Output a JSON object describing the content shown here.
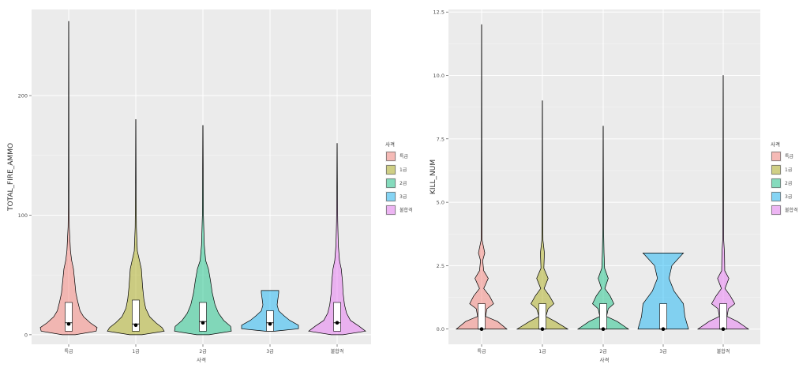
{
  "chart_data": [
    {
      "type": "violin",
      "xlabel": "사격",
      "ylabel": "TOTAL_FIRE_AMMO",
      "categories": [
        "특급",
        "1급",
        "2급",
        "3급",
        "불합격"
      ],
      "yticks": [
        0,
        100,
        200
      ],
      "ytick_labels": [
        "0",
        "100",
        "200"
      ],
      "ylim": [
        -8,
        272
      ],
      "grid": true,
      "legend": {
        "title": "사격",
        "placement": "right",
        "entries": [
          "특급",
          "1급",
          "2급",
          "3급",
          "불합격"
        ]
      },
      "series": [
        {
          "category": "특급",
          "min": 0,
          "max": 262,
          "box": {
            "q1": 3,
            "median": 10,
            "q3": 27
          },
          "mean": 9,
          "profile": [
            [
              0,
              0.22
            ],
            [
              3,
              0.92
            ],
            [
              6,
              0.95
            ],
            [
              10,
              0.72
            ],
            [
              15,
              0.5
            ],
            [
              20,
              0.38
            ],
            [
              28,
              0.3
            ],
            [
              35,
              0.24
            ],
            [
              45,
              0.2
            ],
            [
              55,
              0.16
            ],
            [
              62,
              0.1
            ],
            [
              70,
              0.06
            ],
            [
              80,
              0.04
            ],
            [
              90,
              0.02
            ],
            [
              110,
              0.01
            ],
            [
              150,
              0.008
            ],
            [
              200,
              0.006
            ],
            [
              262,
              0.003
            ]
          ]
        },
        {
          "category": "1급",
          "min": 0,
          "max": 180,
          "box": {
            "q1": 3,
            "median": 9,
            "q3": 29
          },
          "mean": 8,
          "profile": [
            [
              0,
              0.2
            ],
            [
              3,
              0.92
            ],
            [
              6,
              0.85
            ],
            [
              10,
              0.65
            ],
            [
              15,
              0.45
            ],
            [
              22,
              0.32
            ],
            [
              30,
              0.26
            ],
            [
              40,
              0.22
            ],
            [
              55,
              0.18
            ],
            [
              62,
              0.12
            ],
            [
              70,
              0.05
            ],
            [
              90,
              0.02
            ],
            [
              120,
              0.01
            ],
            [
              180,
              0.003
            ]
          ]
        },
        {
          "category": "2급",
          "min": 0,
          "max": 175,
          "box": {
            "q1": 3,
            "median": 11,
            "q3": 27
          },
          "mean": 10,
          "profile": [
            [
              0,
              0.18
            ],
            [
              3,
              0.82
            ],
            [
              7,
              0.8
            ],
            [
              12,
              0.6
            ],
            [
              18,
              0.45
            ],
            [
              25,
              0.35
            ],
            [
              35,
              0.27
            ],
            [
              45,
              0.22
            ],
            [
              55,
              0.16
            ],
            [
              62,
              0.08
            ],
            [
              75,
              0.04
            ],
            [
              100,
              0.015
            ],
            [
              140,
              0.008
            ],
            [
              175,
              0.003
            ]
          ]
        },
        {
          "category": "3급",
          "min": 3,
          "max": 37,
          "box": {
            "q1": 3,
            "median": 10,
            "q3": 20
          },
          "mean": 9,
          "profile": [
            [
              3,
              0.12
            ],
            [
              5,
              0.72
            ],
            [
              8,
              0.72
            ],
            [
              12,
              0.5
            ],
            [
              16,
              0.35
            ],
            [
              20,
              0.22
            ],
            [
              25,
              0.18
            ],
            [
              30,
              0.2
            ],
            [
              35,
              0.22
            ],
            [
              37,
              0.22
            ]
          ]
        },
        {
          "category": "불합격",
          "min": 0,
          "max": 160,
          "box": {
            "q1": 3,
            "median": 10,
            "q3": 27
          },
          "mean": 10,
          "profile": [
            [
              0,
              0.2
            ],
            [
              3,
              0.96
            ],
            [
              7,
              0.75
            ],
            [
              12,
              0.45
            ],
            [
              18,
              0.32
            ],
            [
              25,
              0.25
            ],
            [
              35,
              0.2
            ],
            [
              45,
              0.18
            ],
            [
              55,
              0.14
            ],
            [
              62,
              0.08
            ],
            [
              75,
              0.04
            ],
            [
              95,
              0.02
            ],
            [
              120,
              0.01
            ],
            [
              160,
              0.003
            ]
          ]
        }
      ]
    },
    {
      "type": "violin",
      "xlabel": "사격",
      "ylabel": "KILL_NUM",
      "categories": [
        "특급",
        "1급",
        "2급",
        "3급",
        "불합격"
      ],
      "yticks": [
        0,
        2.5,
        5,
        7.5,
        10,
        12.5
      ],
      "ytick_labels": [
        "0.0",
        "2.5",
        "5.0",
        "7.5",
        "10.0",
        "12.5"
      ],
      "ylim": [
        -0.6,
        12.6
      ],
      "grid": true,
      "legend": {
        "title": "사격",
        "placement": "right",
        "entries": [
          "특급",
          "1급",
          "2급",
          "3급",
          "불합격"
        ]
      },
      "series": [
        {
          "category": "특급",
          "min": 0,
          "max": 12,
          "box": {
            "q1": 0,
            "median": 0,
            "q3": 1
          },
          "mean": 0,
          "profile": [
            [
              0,
              0.95
            ],
            [
              0.3,
              0.6
            ],
            [
              0.5,
              0.15
            ],
            [
              0.8,
              0.2
            ],
            [
              1,
              0.45
            ],
            [
              1.3,
              0.3
            ],
            [
              1.6,
              0.08
            ],
            [
              2,
              0.25
            ],
            [
              2.3,
              0.08
            ],
            [
              2.7,
              0.04
            ],
            [
              3,
              0.12
            ],
            [
              3.5,
              0.02
            ],
            [
              5,
              0.012
            ],
            [
              7,
              0.008
            ],
            [
              9,
              0.006
            ],
            [
              12,
              0.003
            ]
          ]
        },
        {
          "category": "1급",
          "min": 0,
          "max": 9,
          "box": {
            "q1": 0,
            "median": 0,
            "q3": 1
          },
          "mean": 0,
          "profile": [
            [
              0,
              0.88
            ],
            [
              0.3,
              0.45
            ],
            [
              0.5,
              0.12
            ],
            [
              0.8,
              0.2
            ],
            [
              1,
              0.4
            ],
            [
              1.3,
              0.25
            ],
            [
              1.6,
              0.06
            ],
            [
              2,
              0.2
            ],
            [
              2.4,
              0.05
            ],
            [
              3,
              0.07
            ],
            [
              3.5,
              0.02
            ],
            [
              5,
              0.01
            ],
            [
              7,
              0.006
            ],
            [
              9,
              0.003
            ]
          ]
        },
        {
          "category": "2급",
          "min": 0,
          "max": 8,
          "box": {
            "q1": 0,
            "median": 0,
            "q3": 1
          },
          "mean": 0,
          "profile": [
            [
              0,
              0.9
            ],
            [
              0.3,
              0.5
            ],
            [
              0.5,
              0.12
            ],
            [
              0.8,
              0.18
            ],
            [
              1,
              0.38
            ],
            [
              1.3,
              0.25
            ],
            [
              1.6,
              0.06
            ],
            [
              2,
              0.18
            ],
            [
              2.4,
              0.05
            ],
            [
              3,
              0.03
            ],
            [
              4,
              0.012
            ],
            [
              6,
              0.008
            ],
            [
              8,
              0.003
            ]
          ]
        },
        {
          "category": "3급",
          "min": 0,
          "max": 3,
          "box": {
            "q1": 0,
            "median": 0,
            "q3": 1
          },
          "mean": 0,
          "profile": [
            [
              0,
              0.35
            ],
            [
              0.5,
              0.3
            ],
            [
              1,
              0.28
            ],
            [
              1.5,
              0.15
            ],
            [
              2,
              0.08
            ],
            [
              2.5,
              0.12
            ],
            [
              3,
              0.28
            ]
          ]
        },
        {
          "category": "불합격",
          "min": 0,
          "max": 10,
          "box": {
            "q1": 0,
            "median": 0,
            "q3": 1
          },
          "mean": 0,
          "profile": [
            [
              0,
              0.98
            ],
            [
              0.3,
              0.55
            ],
            [
              0.5,
              0.15
            ],
            [
              0.8,
              0.2
            ],
            [
              1,
              0.45
            ],
            [
              1.3,
              0.28
            ],
            [
              1.6,
              0.07
            ],
            [
              2,
              0.22
            ],
            [
              2.3,
              0.06
            ],
            [
              3,
              0.05
            ],
            [
              3.5,
              0.02
            ],
            [
              5,
              0.012
            ],
            [
              7,
              0.008
            ],
            [
              10,
              0.003
            ]
          ]
        }
      ]
    }
  ],
  "colors": {
    "특급": "#f8766d",
    "1급": "#a3a500",
    "2급": "#00bf7d",
    "3급": "#00b0f6",
    "불합격": "#e76bf3",
    "panel_background": "#ebebeb",
    "grid_line": "#ffffff",
    "outline": "#000000",
    "text": "#4d4d4d"
  }
}
